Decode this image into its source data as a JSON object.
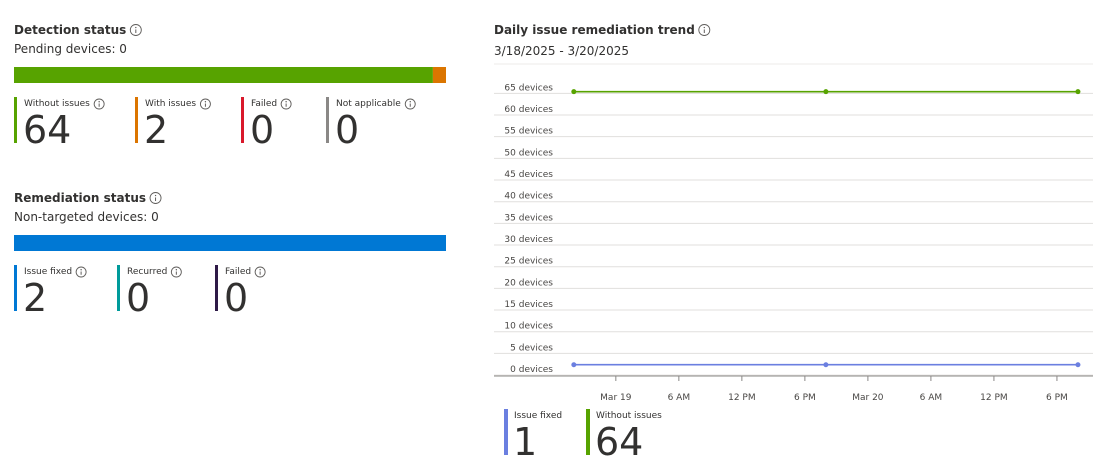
{
  "detection": {
    "title": "Detection status",
    "subtitle": "Pending devices: 0",
    "stats": [
      {
        "label": "Without issues",
        "value": 64,
        "color": "#57a300"
      },
      {
        "label": "With issues",
        "value": 2,
        "color": "#db7500"
      },
      {
        "label": "Failed",
        "value": 0,
        "color": "#d9182b"
      },
      {
        "label": "Not applicable",
        "value": 0,
        "color": "#8a8886"
      }
    ]
  },
  "remediation": {
    "title": "Remediation status",
    "subtitle": "Non-targeted devices: 0",
    "stats": [
      {
        "label": "Issue fixed",
        "value": 2,
        "color": "#0078d4"
      },
      {
        "label": "Recurred",
        "value": 0,
        "color": "#009b9b"
      },
      {
        "label": "Failed",
        "value": 0,
        "color": "#2e1a47"
      }
    ]
  },
  "chart_data": {
    "type": "line",
    "title": "Daily issue remediation trend",
    "subtitle": "3/18/2025 - 3/20/2025",
    "x": [
      "2025-03-18T20:00",
      "2025-03-19T20:00",
      "2025-03-20T20:00"
    ],
    "series": [
      {
        "name": "Issue fixed",
        "color": "#6b7fe0",
        "values": [
          1,
          1,
          1
        ]
      },
      {
        "name": "Without issues",
        "color": "#57a300",
        "values": [
          64,
          64,
          64
        ]
      }
    ],
    "xlim": [
      "2025-03-18T12:24",
      "2025-03-20T21:26"
    ],
    "xticks": [
      {
        "value": "2025-03-19T00:00",
        "label": "Mar 19"
      },
      {
        "value": "2025-03-19T06:00",
        "label": "6 AM"
      },
      {
        "value": "2025-03-19T12:00",
        "label": "12 PM"
      },
      {
        "value": "2025-03-19T18:00",
        "label": "6 PM"
      },
      {
        "value": "2025-03-20T00:00",
        "label": "Mar 20"
      },
      {
        "value": "2025-03-20T06:00",
        "label": "6 AM"
      },
      {
        "value": "2025-03-20T12:00",
        "label": "12 PM"
      },
      {
        "value": "2025-03-20T18:00",
        "label": "6 PM"
      }
    ],
    "ylim": [
      -1.6,
      69
    ],
    "yticks": [
      {
        "value": 0,
        "label": "0 devices"
      },
      {
        "value": 5,
        "label": "5 devices"
      },
      {
        "value": 10,
        "label": "10 devices"
      },
      {
        "value": 15,
        "label": "15 devices"
      },
      {
        "value": 20,
        "label": "20 devices"
      },
      {
        "value": 25,
        "label": "25 devices"
      },
      {
        "value": 30,
        "label": "30 devices"
      },
      {
        "value": 35,
        "label": "35 devices"
      },
      {
        "value": 40,
        "label": "40 devices"
      },
      {
        "value": 45,
        "label": "45 devices"
      },
      {
        "value": 50,
        "label": "50 devices"
      },
      {
        "value": 55,
        "label": "55 devices"
      },
      {
        "value": 60,
        "label": "60 devices"
      },
      {
        "value": 65,
        "label": "65 devices"
      }
    ],
    "grid": true
  }
}
